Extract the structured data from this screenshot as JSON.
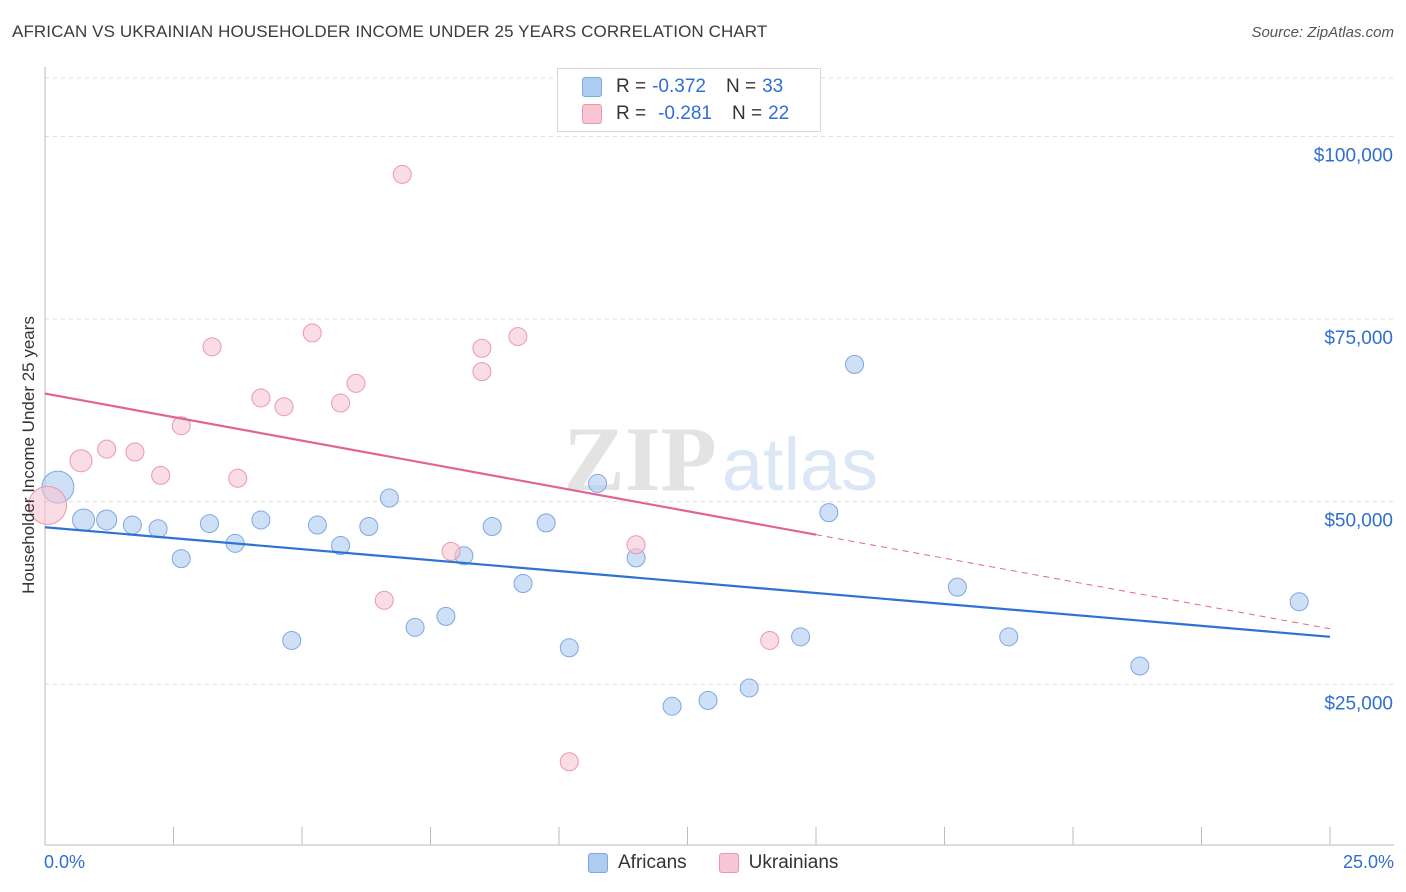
{
  "title": "AFRICAN VS UKRAINIAN HOUSEHOLDER INCOME UNDER 25 YEARS CORRELATION CHART",
  "source": "Source: ZipAtlas.com",
  "watermark": {
    "zip": "ZIP",
    "atlas": "atlas"
  },
  "legend": {
    "rows": [
      {
        "r_label": "R =",
        "r_value": "-0.372",
        "n_label": "N =",
        "n_value": "33",
        "color": "#aecbf0",
        "border": "#7ea8e0"
      },
      {
        "r_label": "R =",
        "r_value": "-0.281",
        "n_label": "N =",
        "n_value": "22",
        "color": "#f7c5d3",
        "border": "#ec97b1"
      }
    ]
  },
  "bottom_legend": [
    {
      "label": "Africans",
      "color": "#aecbf0",
      "border": "#7ea8e0"
    },
    {
      "label": "Ukrainians",
      "color": "#f7c5d3",
      "border": "#ec97b1"
    }
  ],
  "chart_data": {
    "type": "scatter",
    "ylabel": "Householder Income Under 25 years",
    "xlim": [
      0,
      25
    ],
    "ylim": [
      3000,
      108000
    ],
    "x_tick_labels": {
      "min": "0.0%",
      "max": "25.0%"
    },
    "y_ticks": [
      {
        "value": 25000,
        "label": "$25,000"
      },
      {
        "value": 50000,
        "label": "$50,000"
      },
      {
        "value": 75000,
        "label": "$75,000"
      },
      {
        "value": 100000,
        "label": "$100,000"
      }
    ],
    "grid": true,
    "series": [
      {
        "name": "Africans",
        "color": "#aecbf0",
        "stroke": "#7ea8e0",
        "line_color": "#2e72d2",
        "trend": {
          "x0": 0,
          "y0": 46500,
          "x1": 25,
          "y1": 31500,
          "solid_until": 25
        },
        "points": [
          {
            "x": 0.25,
            "y": 52000,
            "r": 16
          },
          {
            "x": 0.75,
            "y": 47500,
            "r": 11
          },
          {
            "x": 1.2,
            "y": 47500,
            "r": 10
          },
          {
            "x": 1.7,
            "y": 46800,
            "r": 9
          },
          {
            "x": 2.2,
            "y": 46300,
            "r": 9
          },
          {
            "x": 2.65,
            "y": 42200,
            "r": 9
          },
          {
            "x": 3.2,
            "y": 47000,
            "r": 9
          },
          {
            "x": 3.7,
            "y": 44300,
            "r": 9
          },
          {
            "x": 4.2,
            "y": 47500,
            "r": 9
          },
          {
            "x": 4.8,
            "y": 31000,
            "r": 9
          },
          {
            "x": 5.3,
            "y": 46800,
            "r": 9
          },
          {
            "x": 5.75,
            "y": 44000,
            "r": 9
          },
          {
            "x": 6.3,
            "y": 46600,
            "r": 9
          },
          {
            "x": 6.7,
            "y": 50500,
            "r": 9
          },
          {
            "x": 7.2,
            "y": 32800,
            "r": 9
          },
          {
            "x": 7.8,
            "y": 34300,
            "r": 9
          },
          {
            "x": 8.15,
            "y": 42600,
            "r": 9
          },
          {
            "x": 8.7,
            "y": 46600,
            "r": 9
          },
          {
            "x": 9.3,
            "y": 38800,
            "r": 9
          },
          {
            "x": 9.75,
            "y": 47100,
            "r": 9
          },
          {
            "x": 10.2,
            "y": 30000,
            "r": 9
          },
          {
            "x": 10.75,
            "y": 52500,
            "r": 9
          },
          {
            "x": 11.5,
            "y": 42300,
            "r": 9
          },
          {
            "x": 12.2,
            "y": 22000,
            "r": 9
          },
          {
            "x": 12.9,
            "y": 22800,
            "r": 9
          },
          {
            "x": 13.7,
            "y": 24500,
            "r": 9
          },
          {
            "x": 14.7,
            "y": 31500,
            "r": 9
          },
          {
            "x": 15.25,
            "y": 48500,
            "r": 9
          },
          {
            "x": 15.75,
            "y": 68800,
            "r": 9
          },
          {
            "x": 17.75,
            "y": 38300,
            "r": 9
          },
          {
            "x": 18.75,
            "y": 31500,
            "r": 9
          },
          {
            "x": 21.3,
            "y": 27500,
            "r": 9
          },
          {
            "x": 24.4,
            "y": 36300,
            "r": 9
          }
        ]
      },
      {
        "name": "Ukrainians",
        "color": "#f7c5d3",
        "stroke": "#ec97b1",
        "line_color": "#e0658e",
        "trend": {
          "x0": 0,
          "y0": 64800,
          "x1": 25,
          "y1": 32600,
          "solid_until": 15
        },
        "points": [
          {
            "x": 0.05,
            "y": 49500,
            "r": 19
          },
          {
            "x": 0.7,
            "y": 55600,
            "r": 11
          },
          {
            "x": 1.2,
            "y": 57200,
            "r": 9
          },
          {
            "x": 1.75,
            "y": 56800,
            "r": 9
          },
          {
            "x": 2.25,
            "y": 53600,
            "r": 9
          },
          {
            "x": 2.65,
            "y": 60400,
            "r": 9
          },
          {
            "x": 3.25,
            "y": 71200,
            "r": 9
          },
          {
            "x": 3.75,
            "y": 53200,
            "r": 9
          },
          {
            "x": 4.2,
            "y": 64200,
            "r": 9
          },
          {
            "x": 4.65,
            "y": 63000,
            "r": 9
          },
          {
            "x": 5.2,
            "y": 73100,
            "r": 9
          },
          {
            "x": 5.75,
            "y": 63500,
            "r": 9
          },
          {
            "x": 6.05,
            "y": 66200,
            "r": 9
          },
          {
            "x": 6.6,
            "y": 36500,
            "r": 9
          },
          {
            "x": 6.95,
            "y": 94800,
            "r": 9
          },
          {
            "x": 7.9,
            "y": 43200,
            "r": 9
          },
          {
            "x": 8.5,
            "y": 71000,
            "r": 9
          },
          {
            "x": 8.5,
            "y": 67800,
            "r": 9
          },
          {
            "x": 9.2,
            "y": 72600,
            "r": 9
          },
          {
            "x": 10.2,
            "y": 14400,
            "r": 9
          },
          {
            "x": 11.5,
            "y": 44100,
            "r": 9
          },
          {
            "x": 14.1,
            "y": 31000,
            "r": 9
          }
        ]
      }
    ]
  }
}
